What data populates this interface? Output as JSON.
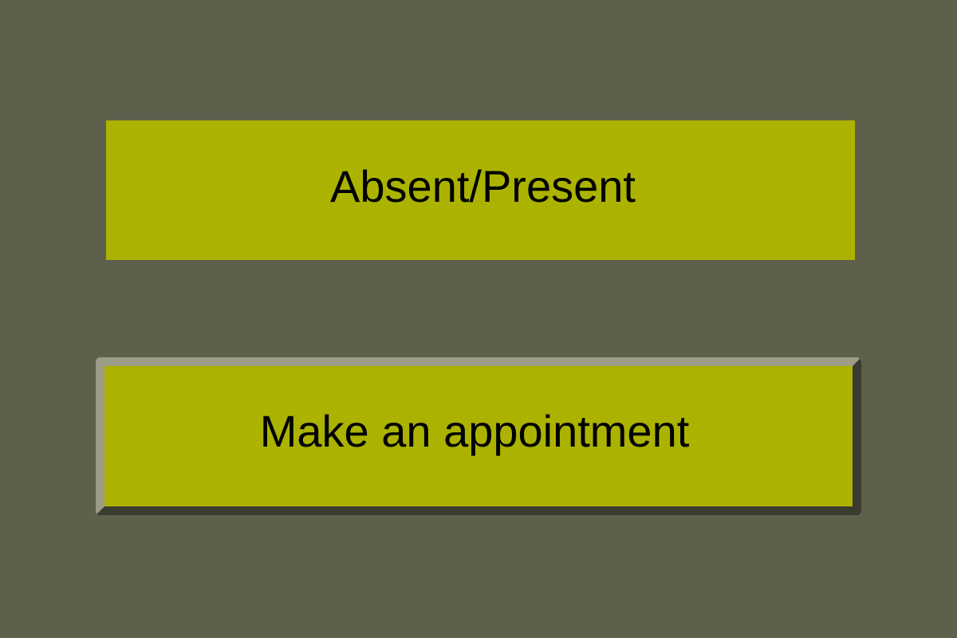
{
  "buttons": {
    "absent_present": {
      "label": "Absent/Present",
      "color": "#abb300"
    },
    "make_appointment": {
      "label": "Make an appointment",
      "color": "#abb300"
    }
  },
  "background_color": "#5e604c"
}
